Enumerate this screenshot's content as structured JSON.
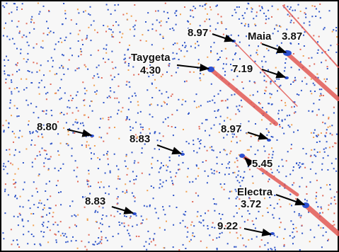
{
  "labels": [
    {
      "magnitude": "8.97"
    },
    {
      "name": "Maia",
      "magnitude": "3.87"
    },
    {
      "name": "Taygeta",
      "magnitude": "4.30"
    },
    {
      "magnitude": "7.19"
    },
    {
      "magnitude": "8.80"
    },
    {
      "magnitude": "8.83"
    },
    {
      "magnitude": "8.97"
    },
    {
      "magnitude": "5.45"
    },
    {
      "name": "Electra",
      "magnitude": "3.72"
    },
    {
      "magnitude": "8.83"
    },
    {
      "magnitude": "9.22"
    }
  ]
}
